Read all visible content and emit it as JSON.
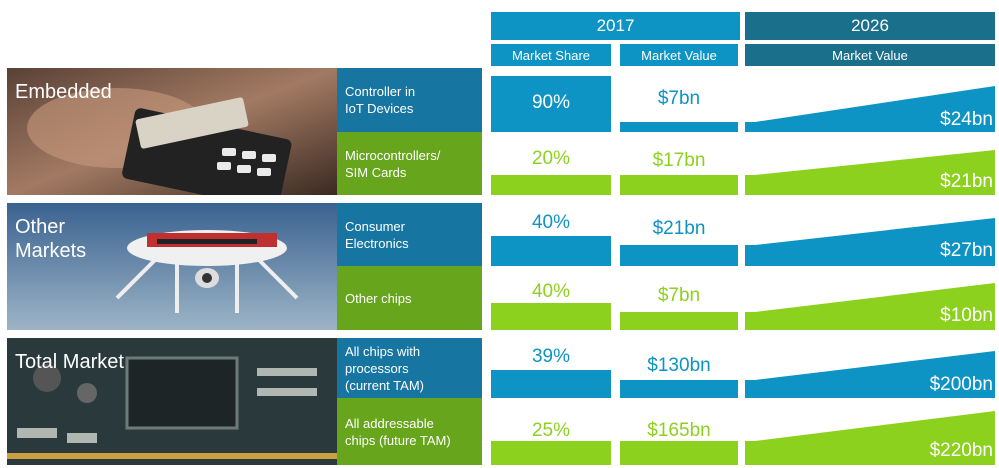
{
  "header": {
    "year_2017": "2017",
    "year_2026": "2026",
    "col_market_share": "Market Share",
    "col_market_value_2017": "Market Value",
    "col_market_value_2026": "Market Value"
  },
  "panels": [
    {
      "label": "Embedded"
    },
    {
      "label": "Other\nMarkets"
    },
    {
      "label": "Total Market"
    }
  ],
  "rows": [
    {
      "category": "Controller in\nIoT Devices",
      "share_2017": "90%",
      "value_2017": "$7bn",
      "value_2026": "$24bn"
    },
    {
      "category": "Microcontrollers/\nSIM Cards",
      "share_2017": "20%",
      "value_2017": "$17bn",
      "value_2026": "$21bn"
    },
    {
      "category": "Consumer\nElectronics",
      "share_2017": "40%",
      "value_2017": "$21bn",
      "value_2026": "$27bn"
    },
    {
      "category": "Other chips",
      "share_2017": "40%",
      "value_2017": "$7bn",
      "value_2026": "$10bn"
    },
    {
      "category": "All chips with\nprocessors\n(current TAM)",
      "share_2017": "39%",
      "value_2017": "$130bn",
      "value_2026": "$200bn"
    },
    {
      "category": "All addressable\nchips (future TAM)",
      "share_2017": "25%",
      "value_2017": "$165bn",
      "value_2026": "$220bn"
    }
  ],
  "colors": {
    "header_blue": "#0d93c4",
    "header_dark": "#1a6f8a",
    "accent_blue": "#0d93c4",
    "accent_green": "#8dd11f",
    "category_blue": "#1676a1",
    "category_green": "#66a51c"
  }
}
